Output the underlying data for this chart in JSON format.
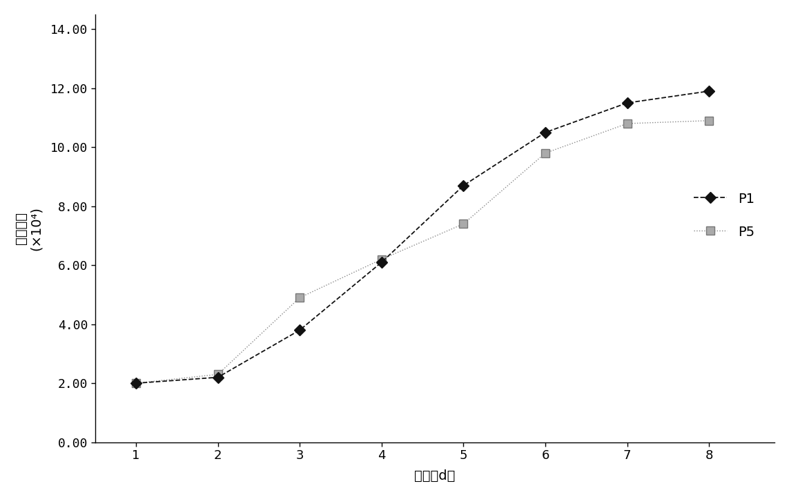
{
  "p1_x": [
    1,
    2,
    3,
    4,
    5,
    6,
    7,
    8
  ],
  "p1_y": [
    2.0,
    2.2,
    3.8,
    6.1,
    8.7,
    10.5,
    11.5,
    11.9
  ],
  "p5_x": [
    1,
    2,
    3,
    4,
    5,
    6,
    7,
    8
  ],
  "p5_y": [
    2.0,
    2.3,
    4.9,
    6.2,
    7.4,
    9.8,
    10.8,
    10.9
  ],
  "p1_label": "P1",
  "p5_label": "P5",
  "xlim": [
    0.5,
    8.8
  ],
  "ylim": [
    0,
    14.5
  ],
  "yticks": [
    0.0,
    2.0,
    4.0,
    6.0,
    8.0,
    10.0,
    12.0,
    14.0
  ],
  "xticks": [
    1,
    2,
    3,
    4,
    5,
    6,
    7,
    8
  ],
  "background_color": "#ffffff",
  "p1_color": "#111111",
  "p5_color": "#888888",
  "ylabel_top": "细胞计数",
  "ylabel_bot": "(×10⁴)",
  "xlabel": "天数（d）"
}
